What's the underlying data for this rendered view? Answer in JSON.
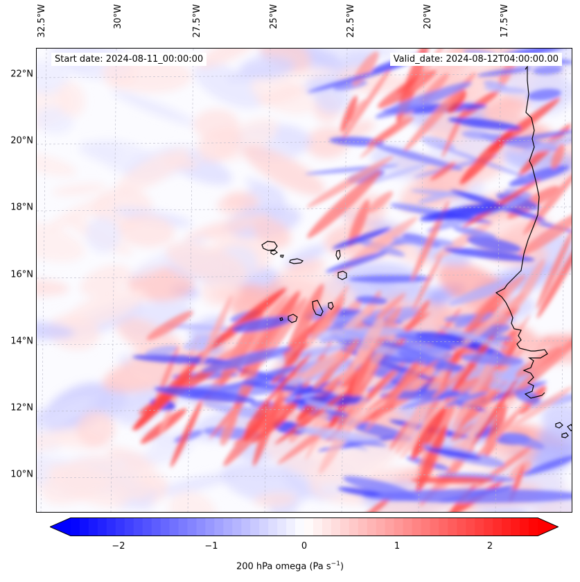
{
  "header": {
    "start_date": "Start date: 2024-08-11_00:00:00",
    "valid_date": "Valid_date: 2024-08-12T04:00:00.00"
  },
  "map": {
    "longitude_labels": [
      "32.5°W",
      "30°W",
      "27.5°W",
      "25°W",
      "22.5°W",
      "20°W",
      "17.5°W"
    ],
    "latitude_labels": [
      "22°N",
      "20°N",
      "18°N",
      "16°N",
      "14°N",
      "12°N",
      "10°N"
    ],
    "lon_range": [
      -32.8,
      -14.8
    ],
    "lat_range": [
      8.9,
      22.8
    ],
    "gridlines": true,
    "field": "200 hPa omega",
    "colormap": "bwr",
    "colors": {
      "negative": "#0000ff",
      "zero": "#ffffff",
      "positive": "#ff0000",
      "coastline": "#000000"
    }
  },
  "colorbar": {
    "ticks": [
      "−2",
      "−1",
      "0",
      "1",
      "2"
    ],
    "range": [
      -2.6,
      2.6
    ],
    "extend": "both",
    "label_main": "200 hPa omega (Pa s",
    "label_exp": "−1",
    "label_tail": ")"
  }
}
